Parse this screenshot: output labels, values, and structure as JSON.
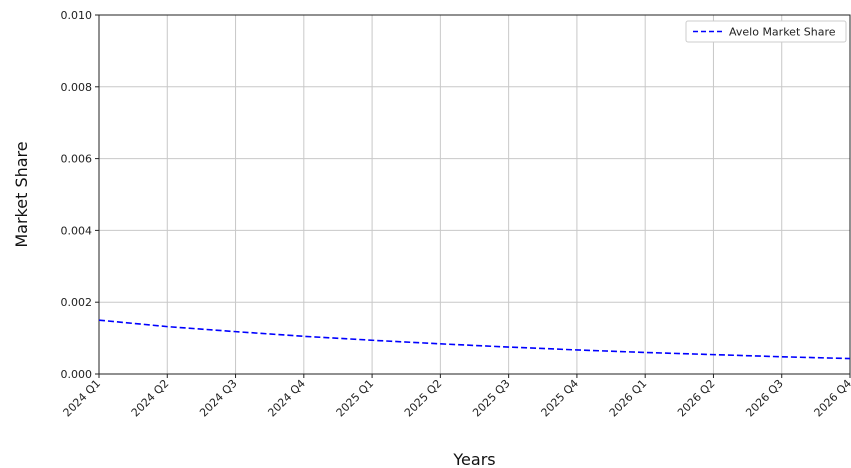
{
  "chart_data": {
    "type": "line",
    "title": "",
    "xlabel": "Years",
    "ylabel": "Market Share",
    "categories": [
      "2024 Q1",
      "2024 Q2",
      "2024 Q3",
      "2024 Q4",
      "2025 Q1",
      "2025 Q2",
      "2025 Q3",
      "2025 Q4",
      "2026 Q1",
      "2026 Q2",
      "2026 Q3",
      "2026 Q4"
    ],
    "yticks": [
      "0.000",
      "0.002",
      "0.004",
      "0.006",
      "0.008",
      "0.010"
    ],
    "ylim": [
      0,
      0.01
    ],
    "grid": true,
    "legend_position": "top-right",
    "series": [
      {
        "name": "Avelo Market Share",
        "color": "#0000ff",
        "line_style": "dashed",
        "values": [
          0.0015,
          0.00132,
          0.00118,
          0.00105,
          0.00094,
          0.00084,
          0.00075,
          0.00067,
          0.0006,
          0.00054,
          0.00048,
          0.00043
        ]
      }
    ]
  }
}
